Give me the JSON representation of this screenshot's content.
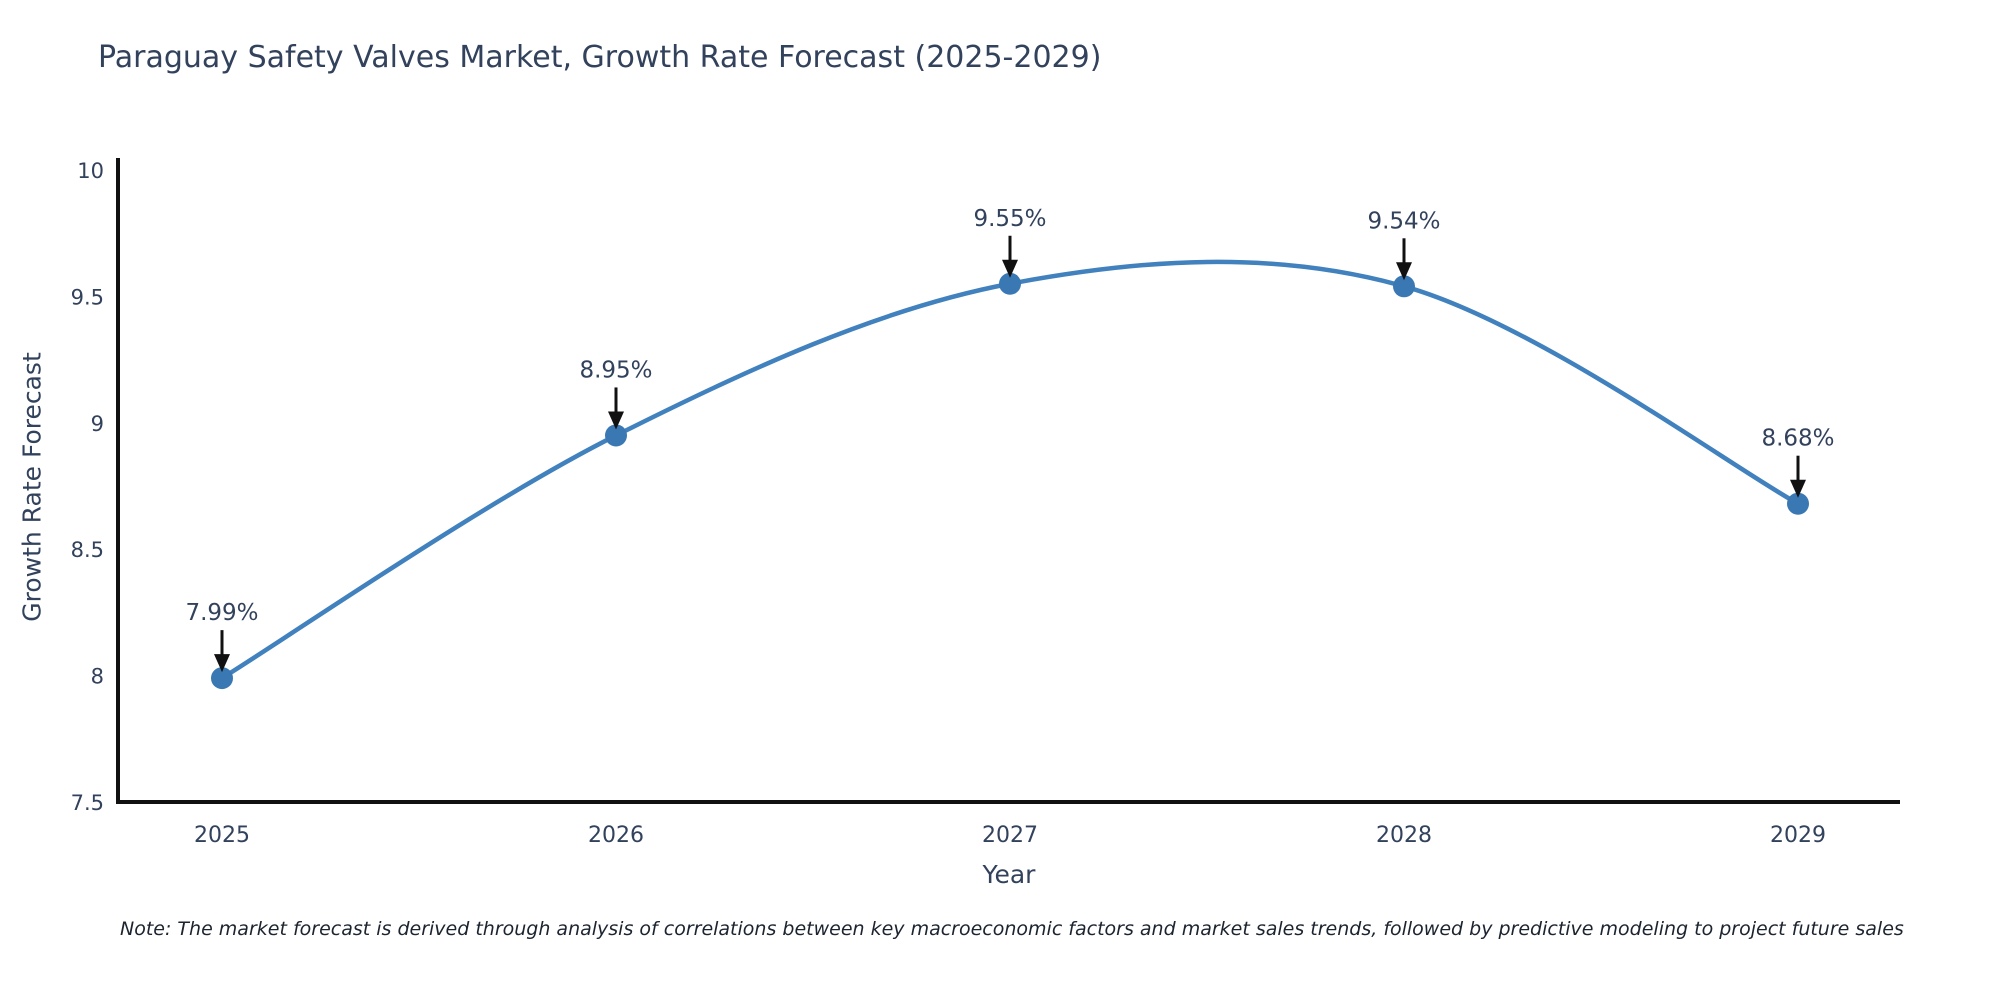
{
  "page": {
    "note": "Note: The market forecast is derived through analysis of correlations between key macroeconomic factors and market sales trends, followed by predictive modeling to project future sales"
  },
  "chart_data": {
    "type": "line",
    "title": "Paraguay Safety Valves Market, Growth Rate Forecast (2025-2029)",
    "xlabel": "Year",
    "ylabel": "Growth Rate Forecast",
    "categories": [
      "2025",
      "2026",
      "2027",
      "2028",
      "2029"
    ],
    "values": [
      7.99,
      8.95,
      9.55,
      9.54,
      8.68
    ],
    "point_labels": [
      "7.99%",
      "8.95%",
      "9.55%",
      "9.54%",
      "8.68%"
    ],
    "ytick_labels": [
      "7.5",
      "8",
      "8.5",
      "9",
      "9.5",
      "10"
    ],
    "ytick_values": [
      7.5,
      8,
      8.5,
      9,
      9.5,
      10
    ],
    "ylim": [
      7.5,
      10
    ],
    "line_shape": "spline",
    "grid": false,
    "legend": "none",
    "annotations": "arrow-above-each-point",
    "colors": {
      "line": "#4181bd",
      "marker": "#3a78b3",
      "axis": "#111111",
      "arrow": "#111111",
      "text": "#32425c",
      "background": "#ffffff"
    }
  }
}
